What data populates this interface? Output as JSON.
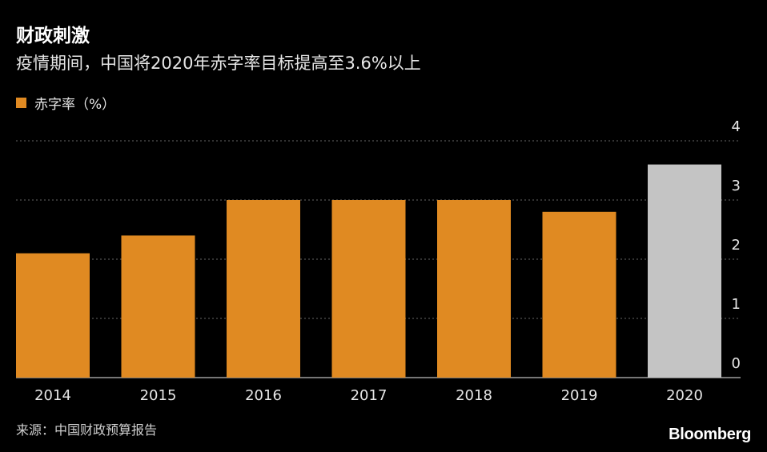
{
  "header": {
    "title": "财政刺激",
    "subtitle": "疫情期间，中国将2020年赤字率目标提高至3.6%以上"
  },
  "footer": {
    "source": "来源：中国财政预算报告",
    "brand": "Bloomberg"
  },
  "colors": {
    "background": "#000000",
    "bar": "#e08a22",
    "bar_highlight": "#c4c4c4",
    "grid": "#666666",
    "text": "#e6e6e6"
  },
  "chart_data": {
    "type": "bar",
    "categories": [
      "2014",
      "2015",
      "2016",
      "2017",
      "2018",
      "2019",
      "2020"
    ],
    "series": [
      {
        "name": "赤字率（%）",
        "values": [
          2.1,
          2.4,
          3.0,
          3.0,
          3.0,
          2.8,
          3.6
        ]
      }
    ],
    "highlight_index": 6,
    "ylim": [
      0,
      4
    ],
    "yticks": [
      "0",
      "1",
      "2",
      "3",
      "4"
    ],
    "y_axis_side": "right",
    "grid": "dotted horizontal",
    "legend": "top-left"
  }
}
